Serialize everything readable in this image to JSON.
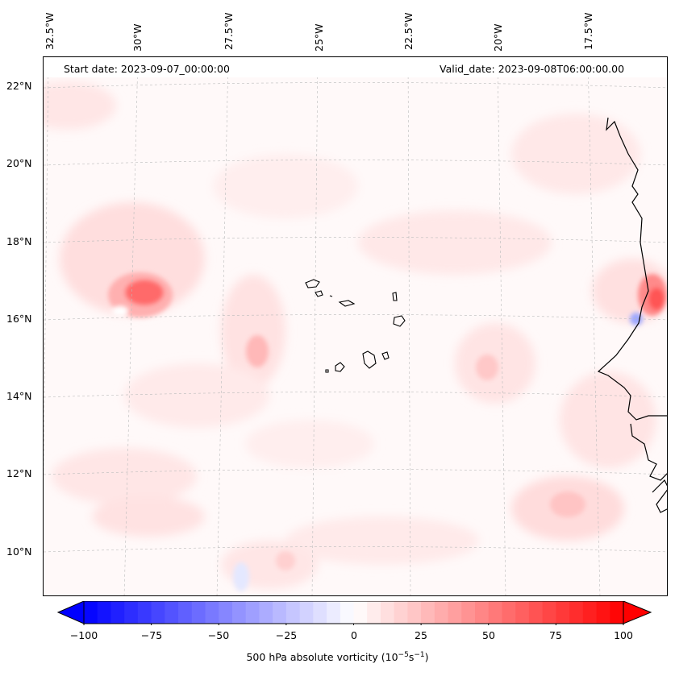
{
  "map": {
    "start_date": "Start date: 2023-09-07_00:00:00",
    "valid_date": "Valid_date: 2023-09-08T06:00:00.00",
    "longitude_labels": [
      "32.5°W",
      "30°W",
      "27.5°W",
      "25°W",
      "22.5°W",
      "20°W",
      "17.5°W"
    ],
    "latitude_labels": [
      "22°N",
      "20°N",
      "18°N",
      "16°N",
      "14°N",
      "12°N",
      "10°N"
    ],
    "features": [
      "Cabo Verde islands",
      "West African coastline",
      "Vorticity maximum near 16.5°N 30°W"
    ]
  },
  "colorbar": {
    "title_prefix": "500 hPa absolute vorticity (10",
    "title_exp1": "−5",
    "title_mid": "s",
    "title_exp2": "−1",
    "title_suffix": ")",
    "tick_labels": [
      "−100",
      "−75",
      "−50",
      "−25",
      "0",
      "25",
      "50",
      "75",
      "100"
    ],
    "range": [
      -100,
      100
    ],
    "colormap": "bwr"
  },
  "colors": {
    "negative": "#0000ff",
    "neutral": "#ffffff",
    "positive": "#ff0000",
    "coastline": "#000000",
    "gridline": "#bbbbbb"
  }
}
